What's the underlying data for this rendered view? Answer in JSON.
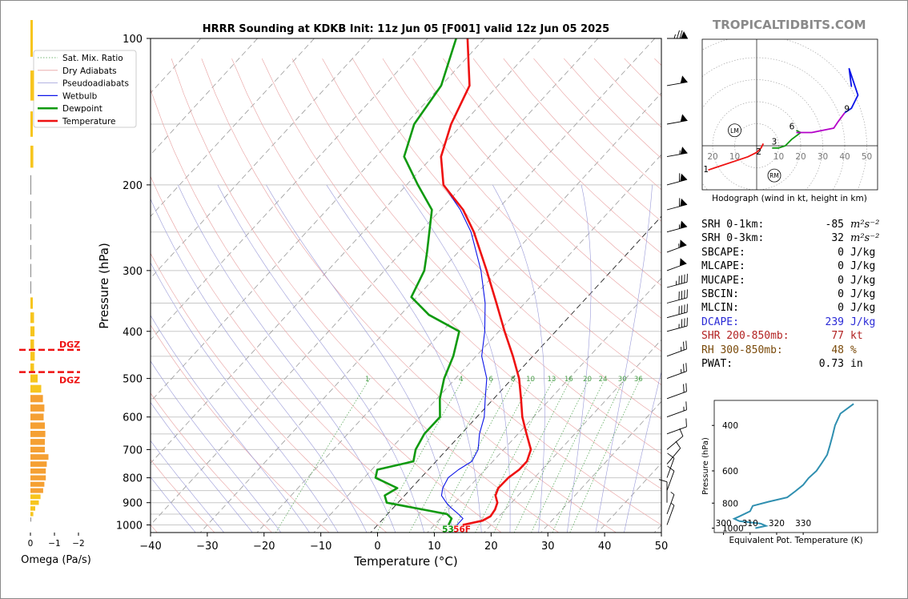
{
  "brand": "TROPICALTIDBITS.COM",
  "chart_data": [
    {
      "type": "skew-t",
      "title": "HRRR Sounding at KDKB Init: 11z Jun 05 [F001] valid 12z Jun 05 2025",
      "xlabel": "Temperature (°C)",
      "ylabel": "Pressure (hPa)",
      "xlim": [
        -40,
        50
      ],
      "ylim": [
        1050,
        100
      ],
      "y_scale": "log",
      "x_ticks": [
        -40,
        -30,
        -20,
        -10,
        0,
        10,
        20,
        30,
        40,
        50
      ],
      "y_ticks": [
        100,
        200,
        300,
        400,
        500,
        600,
        700,
        800,
        900,
        1000
      ],
      "grid": true,
      "legend_position": "top-left",
      "legend": [
        "Sat. Mix. Ratio",
        "Dry Adiabats",
        "Pseudoadiabats",
        "Wetbulb",
        "Dewpoint",
        "Temperature"
      ],
      "series": [
        {
          "name": "Temperature",
          "color": "#ee1111",
          "points": [
            [
              1000,
              15
            ],
            [
              980,
              17.8
            ],
            [
              960,
              18.5
            ],
            [
              930,
              18.2
            ],
            [
              900,
              17.5
            ],
            [
              870,
              16.0
            ],
            [
              840,
              15.3
            ],
            [
              800,
              15.4
            ],
            [
              770,
              16.0
            ],
            [
              740,
              16.0
            ],
            [
              700,
              14.8
            ],
            [
              650,
              11.5
            ],
            [
              600,
              8.0
            ],
            [
              550,
              4.8
            ],
            [
              500,
              1.2
            ],
            [
              450,
              -3.5
            ],
            [
              400,
              -9.0
            ],
            [
              350,
              -15.0
            ],
            [
              300,
              -22.0
            ],
            [
              250,
              -30.5
            ],
            [
              225,
              -36.0
            ],
            [
              200,
              -43.5
            ],
            [
              175,
              -48.5
            ],
            [
              150,
              -52.0
            ],
            [
              125,
              -55.0
            ],
            [
              100,
              -63.0
            ]
          ]
        },
        {
          "name": "Dewpoint",
          "color": "#109a10",
          "points": [
            [
              1000,
              12.5
            ],
            [
              970,
              12.0
            ],
            [
              950,
              10.5
            ],
            [
              900,
              -2.0
            ],
            [
              870,
              -3.5
            ],
            [
              840,
              -2.5
            ],
            [
              800,
              -8.0
            ],
            [
              770,
              -9.0
            ],
            [
              740,
              -4.0
            ],
            [
              700,
              -5.5
            ],
            [
              650,
              -6.5
            ],
            [
              600,
              -6.5
            ],
            [
              550,
              -9.5
            ],
            [
              500,
              -12.0
            ],
            [
              450,
              -14.0
            ],
            [
              400,
              -17.0
            ],
            [
              370,
              -25.0
            ],
            [
              340,
              -31.0
            ],
            [
              300,
              -33.0
            ],
            [
              275,
              -35.5
            ],
            [
              225,
              -41.5
            ],
            [
              200,
              -48.0
            ],
            [
              175,
              -55.0
            ],
            [
              150,
              -58.5
            ],
            [
              125,
              -60.0
            ],
            [
              100,
              -65.0
            ]
          ]
        },
        {
          "name": "Wetbulb",
          "color": "#0b14e8",
          "points": [
            [
              1000,
              14.0
            ],
            [
              970,
              14.0
            ],
            [
              950,
              12.5
            ],
            [
              920,
              10.0
            ],
            [
              900,
              8.5
            ],
            [
              870,
              6.5
            ],
            [
              840,
              5.5
            ],
            [
              800,
              4.8
            ],
            [
              770,
              5.3
            ],
            [
              740,
              6.3
            ],
            [
              700,
              5.5
            ],
            [
              650,
              3.2
            ],
            [
              600,
              1.3
            ],
            [
              550,
              -1.5
            ],
            [
              500,
              -4.5
            ],
            [
              450,
              -9.0
            ],
            [
              400,
              -12.5
            ],
            [
              350,
              -17.0
            ],
            [
              300,
              -23.0
            ],
            [
              250,
              -31.0
            ],
            [
              225,
              -36.5
            ],
            [
              200,
              -43.5
            ],
            [
              175,
              -48.5
            ],
            [
              150,
              -52.0
            ],
            [
              125,
              -55.0
            ],
            [
              100,
              -63.0
            ]
          ]
        }
      ],
      "mixing_ratio_labels": [
        "1",
        "4",
        "6",
        "8",
        "10",
        "13",
        "16",
        "20",
        "24",
        "30",
        "36"
      ],
      "surface_labels": {
        "dewpoint": "53",
        "temperature": "56F"
      }
    },
    {
      "type": "bar",
      "title": "Omega",
      "xlabel": "Omega (Pa/s)",
      "x_ticks": [
        "0",
        "−1",
        "−2"
      ],
      "dgz_label": "DGZ",
      "dgz_levels_hPa": [
        450,
        500
      ],
      "pressure_levels": [
        100,
        125,
        150,
        175,
        200,
        225,
        250,
        275,
        300,
        325,
        350,
        375,
        400,
        425,
        450,
        475,
        500,
        525,
        550,
        575,
        600,
        625,
        650,
        675,
        700,
        725,
        750,
        775,
        800,
        825,
        850,
        875,
        900,
        925,
        950,
        975
      ],
      "values": [
        0.1,
        0.15,
        0.1,
        0.12,
        0.01,
        0.02,
        0.02,
        0.02,
        0.01,
        0.02,
        0.1,
        0.15,
        0.17,
        0.15,
        0.18,
        0.15,
        0.3,
        0.45,
        0.52,
        0.58,
        0.55,
        0.6,
        0.62,
        0.6,
        0.6,
        0.75,
        0.68,
        0.64,
        0.64,
        0.58,
        0.53,
        0.42,
        0.35,
        0.2,
        0.12,
        0.02
      ]
    },
    {
      "type": "hodograph",
      "caption": "Hodograph (wind in kt, height in km)",
      "rings_kt": [
        10,
        20,
        30,
        40,
        50
      ],
      "ring_labels_left": [
        "20",
        "10"
      ],
      "ring_labels_right": [
        "10",
        "20",
        "30",
        "40",
        "50"
      ],
      "storm_motion_labels": [
        "LM",
        "RM"
      ],
      "height_labels_km": [
        "1",
        "2",
        "3",
        "6",
        "9"
      ],
      "segments": [
        {
          "km": "0-3",
          "color": "#ee1111",
          "uv": [
            [
              -22,
              -11
            ],
            [
              -19,
              -10
            ],
            [
              -10,
              -7
            ],
            [
              -4,
              -5
            ],
            [
              0,
              -3
            ],
            [
              2,
              -1
            ],
            [
              3,
              1
            ]
          ]
        },
        {
          "km": "3-6",
          "color": "#109a10",
          "uv": [
            [
              7,
              -1
            ],
            [
              10,
              -1
            ],
            [
              13,
              0
            ],
            [
              16,
              3
            ],
            [
              20,
              6
            ],
            [
              18,
              7
            ]
          ]
        },
        {
          "km": "6-9",
          "color": "#b400c8",
          "uv": [
            [
              18,
              6
            ],
            [
              25,
              6
            ],
            [
              30,
              7
            ],
            [
              35,
              8
            ],
            [
              37,
              11
            ],
            [
              40,
              15
            ]
          ]
        },
        {
          "km": "9-12",
          "color": "#0b14e8",
          "uv": [
            [
              40,
              15
            ],
            [
              43,
              17
            ],
            [
              46,
              23
            ],
            [
              42,
              35
            ],
            [
              43,
              27
            ],
            [
              42,
              35
            ]
          ]
        }
      ]
    },
    {
      "type": "line",
      "title": "Equivalent Potential Temperature",
      "xlabel": "Equivalent Pot. Temperature (K)",
      "ylabel": "Pressure (hPa)",
      "x_ticks": [
        300,
        310,
        320,
        330
      ],
      "y_ticks": [
        400,
        600,
        800,
        1000
      ],
      "points": [
        [
          1000,
          312
        ],
        [
          980,
          316
        ],
        [
          960,
          314
        ],
        [
          940,
          306
        ],
        [
          920,
          304
        ],
        [
          900,
          306
        ],
        [
          860,
          310
        ],
        [
          820,
          311
        ],
        [
          790,
          317
        ],
        [
          760,
          324
        ],
        [
          720,
          327
        ],
        [
          680,
          330
        ],
        [
          640,
          332
        ],
        [
          600,
          335
        ],
        [
          560,
          337
        ],
        [
          520,
          339
        ],
        [
          480,
          340
        ],
        [
          440,
          341
        ],
        [
          400,
          342
        ],
        [
          360,
          344
        ],
        [
          330,
          349
        ]
      ]
    }
  ],
  "stats": [
    {
      "key": "SRH 0-1km:",
      "value": "-85",
      "unit": "m²s⁻²",
      "color": "#000000"
    },
    {
      "key": "SRH 0-3km:",
      "value": "32",
      "unit": "m²s⁻²",
      "color": "#000000"
    },
    {
      "key": "SBCAPE:",
      "value": "0",
      "unit": "J/kg",
      "color": "#000000"
    },
    {
      "key": "MLCAPE:",
      "value": "0",
      "unit": "J/kg",
      "color": "#000000"
    },
    {
      "key": "MUCAPE:",
      "value": "0",
      "unit": "J/kg",
      "color": "#000000"
    },
    {
      "key": "SBCIN:",
      "value": "0",
      "unit": "J/kg",
      "color": "#000000"
    },
    {
      "key": "MLCIN:",
      "value": "0",
      "unit": "J/kg",
      "color": "#000000"
    },
    {
      "key": "DCAPE:",
      "value": "239",
      "unit": "J/kg",
      "color": "#2a2ad6"
    },
    {
      "key": "SHR 200-850mb:",
      "value": "77",
      "unit": "kt",
      "color": "#b22222"
    },
    {
      "key": "RH 300-850mb:",
      "value": "48",
      "unit": "%",
      "color": "#7a4a0a"
    },
    {
      "key": "PWAT:",
      "value": "0.73",
      "unit": "in",
      "color": "#000000"
    }
  ],
  "wind_barbs": [
    {
      "p": 100,
      "dir": 270,
      "kt": 75
    },
    {
      "p": 125,
      "dir": 260,
      "kt": 50
    },
    {
      "p": 150,
      "dir": 260,
      "kt": 50
    },
    {
      "p": 175,
      "dir": 260,
      "kt": 55
    },
    {
      "p": 200,
      "dir": 255,
      "kt": 60
    },
    {
      "p": 225,
      "dir": 255,
      "kt": 60
    },
    {
      "p": 250,
      "dir": 255,
      "kt": 55
    },
    {
      "p": 275,
      "dir": 250,
      "kt": 55
    },
    {
      "p": 300,
      "dir": 250,
      "kt": 50
    },
    {
      "p": 325,
      "dir": 255,
      "kt": 45
    },
    {
      "p": 350,
      "dir": 255,
      "kt": 40
    },
    {
      "p": 375,
      "dir": 255,
      "kt": 40
    },
    {
      "p": 400,
      "dir": 255,
      "kt": 35
    },
    {
      "p": 450,
      "dir": 250,
      "kt": 25
    },
    {
      "p": 500,
      "dir": 250,
      "kt": 25
    },
    {
      "p": 550,
      "dir": 250,
      "kt": 20
    },
    {
      "p": 600,
      "dir": 250,
      "kt": 15
    },
    {
      "p": 650,
      "dir": 250,
      "kt": 10
    },
    {
      "p": 700,
      "dir": 230,
      "kt": 10
    },
    {
      "p": 750,
      "dir": 220,
      "kt": 10
    },
    {
      "p": 800,
      "dir": 200,
      "kt": 10
    },
    {
      "p": 850,
      "dir": 200,
      "kt": 10
    },
    {
      "p": 900,
      "dir": 180,
      "kt": 10
    },
    {
      "p": 950,
      "dir": 200,
      "kt": 5
    },
    {
      "p": 1000,
      "dir": 200,
      "kt": 5
    }
  ]
}
